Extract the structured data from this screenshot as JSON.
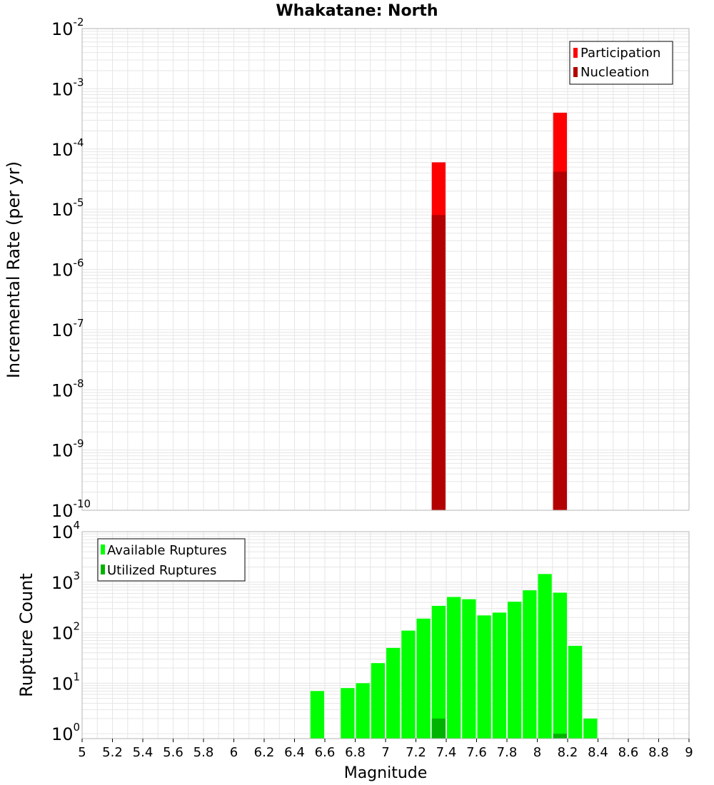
{
  "colors": {
    "participation": "#ff0000",
    "nucleation": "#b30000",
    "available": "#00ff00",
    "utilized": "#00b300",
    "grid": "#e6e6e6",
    "frame": "#b5b5b5"
  },
  "chart_data": [
    {
      "type": "bar",
      "title": "Whakatane: North",
      "ylabel": "Incremental Rate (per yr)",
      "y_scale": "log",
      "ylim": [
        1e-10,
        0.01
      ],
      "xlim": [
        5,
        9
      ],
      "grid": true,
      "legend_placement": "top-right",
      "y_tick_labels": [
        {
          "exp": -10,
          "base": "10",
          "sup": "-10"
        },
        {
          "exp": -9,
          "base": "10",
          "sup": "-9"
        },
        {
          "exp": -8,
          "base": "10",
          "sup": "-8"
        },
        {
          "exp": -7,
          "base": "10",
          "sup": "-7"
        },
        {
          "exp": -6,
          "base": "10",
          "sup": "-6"
        },
        {
          "exp": -5,
          "base": "10",
          "sup": "-5"
        },
        {
          "exp": -4,
          "base": "10",
          "sup": "-4"
        },
        {
          "exp": -3,
          "base": "10",
          "sup": "-3"
        },
        {
          "exp": -2,
          "base": "10",
          "sup": "-2"
        }
      ],
      "series": [
        {
          "name": "Participation",
          "color": "#ff0000",
          "x": [
            7.35,
            8.15
          ],
          "values": [
            6e-05,
            0.0004
          ]
        },
        {
          "name": "Nucleation",
          "color": "#b30000",
          "x": [
            7.35,
            8.15
          ],
          "values": [
            8e-06,
            4.2e-05
          ]
        }
      ]
    },
    {
      "type": "bar",
      "xlabel": "Magnitude",
      "ylabel": "Rupture Count",
      "y_scale": "log",
      "ylim": [
        0.8,
        10000
      ],
      "xlim": [
        5,
        9
      ],
      "grid": true,
      "legend_placement": "top-left",
      "x_tick_labels": [
        "5",
        "5.2",
        "5.4",
        "5.6",
        "5.8",
        "6",
        "6.2",
        "6.4",
        "6.6",
        "6.8",
        "7",
        "7.2",
        "7.4",
        "7.6",
        "7.8",
        "8",
        "8.2",
        "8.4",
        "8.6",
        "8.8",
        "9"
      ],
      "y_tick_labels": [
        {
          "exp": 0,
          "base": "10",
          "sup": "0"
        },
        {
          "exp": 1,
          "base": "10",
          "sup": "1"
        },
        {
          "exp": 2,
          "base": "10",
          "sup": "2"
        },
        {
          "exp": 3,
          "base": "10",
          "sup": "3"
        },
        {
          "exp": 4,
          "base": "10",
          "sup": "4"
        }
      ],
      "series": [
        {
          "name": "Available Ruptures",
          "color": "#00ff00",
          "x": [
            6.55,
            6.75,
            6.85,
            6.95,
            7.05,
            7.15,
            7.25,
            7.35,
            7.45,
            7.55,
            7.65,
            7.75,
            7.85,
            7.95,
            8.05,
            8.15,
            8.25,
            8.35
          ],
          "values": [
            7,
            8,
            10,
            25,
            50,
            110,
            190,
            340,
            510,
            460,
            220,
            250,
            410,
            690,
            1450,
            620,
            55,
            2
          ]
        },
        {
          "name": "Utilized Ruptures",
          "color": "#00b300",
          "x": [
            7.35,
            8.15
          ],
          "values": [
            2,
            1
          ]
        }
      ]
    }
  ]
}
